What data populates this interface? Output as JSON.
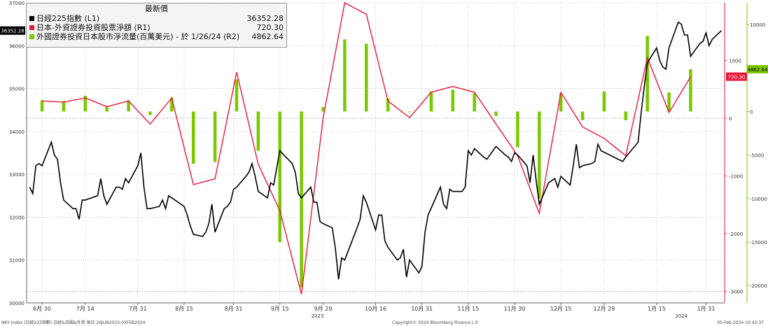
{
  "chart_data": {
    "type": "line",
    "title": "最新價",
    "colors": {
      "nikkei": "#000000",
      "net_buy": "#e8193b",
      "net_flow": "#7cc800",
      "grid": "#b8b8b8",
      "right_axis": "#e8193b"
    },
    "legend": [
      {
        "label": "日經225指數 (L1)",
        "value": "36352.28",
        "color": "#000000"
      },
      {
        "label": "日本-外資證券投資股票淨額 (R1)",
        "value": "720.30",
        "color": "#e8193b"
      },
      {
        "label": "外國證券投資日本股市淨流量(百萬美元) - 於 1/26/24 (R2)",
        "value": "4862.64",
        "color": "#7cc800"
      }
    ],
    "legend_placement": "top-left",
    "grid": true,
    "left_axis": {
      "ticks": [
        30000,
        31000,
        32000,
        33000,
        34000,
        35000,
        36000,
        37000
      ],
      "ylim": [
        30000,
        37000
      ]
    },
    "right_axis_r1": {
      "ticks": [
        1000,
        0,
        -1000,
        -2000,
        -3000
      ],
      "ylim": [
        -3200,
        2000
      ]
    },
    "right_axis_r2": {
      "ticks": [
        10000,
        5000,
        0,
        -5000,
        -10000,
        -15000,
        -20000
      ],
      "ylim": [
        -22000,
        12500
      ]
    },
    "x_ticks": [
      "6月 30",
      "7月 14",
      "7月 31",
      "8月 15",
      "8月 31",
      "9月 15",
      "9月 29",
      "10月 16",
      "10月 31",
      "11月 15",
      "11月 30",
      "12月 15",
      "12月 29",
      "1月 15",
      "1月 31"
    ],
    "year_labels": [
      "2023",
      "2024"
    ],
    "last_value_tags": [
      "36352.28",
      "720.30",
      "4862.64"
    ],
    "nikkei": [
      [
        "6/26",
        32700
      ],
      [
        "6/27",
        32550
      ],
      [
        "6/28",
        33200
      ],
      [
        "6/29",
        33250
      ],
      [
        "6/30",
        33200
      ],
      [
        "7/3",
        33750
      ],
      [
        "7/4",
        33450
      ],
      [
        "7/5",
        33350
      ],
      [
        "7/6",
        32800
      ],
      [
        "7/7",
        32400
      ],
      [
        "7/10",
        32200
      ],
      [
        "7/11",
        32200
      ],
      [
        "7/12",
        31950
      ],
      [
        "7/13",
        32400
      ],
      [
        "7/14",
        32400
      ],
      [
        "7/18",
        32500
      ],
      [
        "7/19",
        32900
      ],
      [
        "7/20",
        32500
      ],
      [
        "7/21",
        32300
      ],
      [
        "7/24",
        32700
      ],
      [
        "7/25",
        32700
      ],
      [
        "7/26",
        32650
      ],
      [
        "7/27",
        32900
      ],
      [
        "7/28",
        32800
      ],
      [
        "7/31",
        33200
      ],
      [
        "8/1",
        33500
      ],
      [
        "8/2",
        32700
      ],
      [
        "8/3",
        32200
      ],
      [
        "8/4",
        32200
      ],
      [
        "8/7",
        32250
      ],
      [
        "8/8",
        32400
      ],
      [
        "8/9",
        32200
      ],
      [
        "8/10",
        32500
      ],
      [
        "8/14",
        32300
      ],
      [
        "8/15",
        32250
      ],
      [
        "8/16",
        32050
      ],
      [
        "8/17",
        31800
      ],
      [
        "8/18",
        31600
      ],
      [
        "8/21",
        31550
      ],
      [
        "8/22",
        31650
      ],
      [
        "8/23",
        31850
      ],
      [
        "8/24",
        32300
      ],
      [
        "8/25",
        31650
      ],
      [
        "8/28",
        32200
      ],
      [
        "8/29",
        32250
      ],
      [
        "8/30",
        32350
      ],
      [
        "8/31",
        32650
      ],
      [
        "9/1",
        32700
      ],
      [
        "9/4",
        32950
      ],
      [
        "9/5",
        33050
      ],
      [
        "9/6",
        33250
      ],
      [
        "9/7",
        32950
      ],
      [
        "9/8",
        32600
      ],
      [
        "9/11",
        32450
      ],
      [
        "9/12",
        32800
      ],
      [
        "9/13",
        32750
      ],
      [
        "9/14",
        33150
      ],
      [
        "9/15",
        33550
      ],
      [
        "9/19",
        33250
      ],
      [
        "9/20",
        33050
      ],
      [
        "9/21",
        32550
      ],
      [
        "9/22",
        32450
      ],
      [
        "9/25",
        32700
      ],
      [
        "9/26",
        32350
      ],
      [
        "9/27",
        32350
      ],
      [
        "9/28",
        31900
      ],
      [
        "9/29",
        31850
      ],
      [
        "10/2",
        31750
      ],
      [
        "10/3",
        31250
      ],
      [
        "10/4",
        30550
      ],
      [
        "10/5",
        31050
      ],
      [
        "10/6",
        31000
      ],
      [
        "10/10",
        31750
      ],
      [
        "10/11",
        31950
      ],
      [
        "10/12",
        32500
      ],
      [
        "10/13",
        32350
      ],
      [
        "10/16",
        31700
      ],
      [
        "10/17",
        32050
      ],
      [
        "10/18",
        32050
      ],
      [
        "10/19",
        31450
      ],
      [
        "10/20",
        31300
      ],
      [
        "10/23",
        31000
      ],
      [
        "10/24",
        31050
      ],
      [
        "10/25",
        31250
      ],
      [
        "10/26",
        30600
      ],
      [
        "10/27",
        31000
      ],
      [
        "10/30",
        30700
      ],
      [
        "10/31",
        30850
      ],
      [
        "11/1",
        31650
      ],
      [
        "11/2",
        32050
      ],
      [
        "11/6",
        32700
      ],
      [
        "11/7",
        32300
      ],
      [
        "11/8",
        32200
      ],
      [
        "11/9",
        32650
      ],
      [
        "11/10",
        32600
      ],
      [
        "11/13",
        32600
      ],
      [
        "11/14",
        32700
      ],
      [
        "11/15",
        33550
      ],
      [
        "11/16",
        33450
      ],
      [
        "11/17",
        33600
      ],
      [
        "11/20",
        33400
      ],
      [
        "11/21",
        33350
      ],
      [
        "11/22",
        33450
      ],
      [
        "11/24",
        33650
      ],
      [
        "11/27",
        33450
      ],
      [
        "11/28",
        33400
      ],
      [
        "11/29",
        33300
      ],
      [
        "11/30",
        33500
      ],
      [
        "12/1",
        33450
      ],
      [
        "12/4",
        33200
      ],
      [
        "12/5",
        32800
      ],
      [
        "12/6",
        33450
      ],
      [
        "12/7",
        32850
      ],
      [
        "12/8",
        32300
      ],
      [
        "12/11",
        32800
      ],
      [
        "12/12",
        32850
      ],
      [
        "12/13",
        32900
      ],
      [
        "12/14",
        32700
      ],
      [
        "12/15",
        32950
      ],
      [
        "12/18",
        32750
      ],
      [
        "12/19",
        33200
      ],
      [
        "12/20",
        33700
      ],
      [
        "12/21",
        33150
      ],
      [
        "12/22",
        33200
      ],
      [
        "12/25",
        33250
      ],
      [
        "12/26",
        33300
      ],
      [
        "12/27",
        33700
      ],
      [
        "12/28",
        33550
      ],
      [
        "1/4",
        33300
      ],
      [
        "1/5",
        33400
      ],
      [
        "1/9",
        33750
      ],
      [
        "1/10",
        34450
      ],
      [
        "1/11",
        35050
      ],
      [
        "1/12",
        35600
      ],
      [
        "1/15",
        35950
      ],
      [
        "1/16",
        35650
      ],
      [
        "1/17",
        35500
      ],
      [
        "1/18",
        35450
      ],
      [
        "1/19",
        35950
      ],
      [
        "1/22",
        36550
      ],
      [
        "1/23",
        36500
      ],
      [
        "1/24",
        36250
      ],
      [
        "1/25",
        36250
      ],
      [
        "1/26",
        35750
      ],
      [
        "1/29",
        36050
      ],
      [
        "1/30",
        36100
      ],
      [
        "1/31",
        36300
      ],
      [
        "2/1",
        36000
      ],
      [
        "2/2",
        36150
      ],
      [
        "2/5",
        36352.28
      ]
    ],
    "net_buy": [
      [
        "6/30",
        300
      ],
      [
        "7/7",
        280
      ],
      [
        "7/14",
        350
      ],
      [
        "7/21",
        200
      ],
      [
        "7/28",
        300
      ],
      [
        "8/4",
        -100
      ],
      [
        "8/11",
        350
      ],
      [
        "8/18",
        -1150
      ],
      [
        "8/25",
        -1050
      ],
      [
        "9/1",
        800
      ],
      [
        "9/8",
        -800
      ],
      [
        "9/15",
        -1600
      ],
      [
        "9/22",
        -3050
      ],
      [
        "9/29",
        0
      ],
      [
        "10/6",
        2000
      ],
      [
        "10/13",
        1800
      ],
      [
        "10/20",
        300
      ],
      [
        "10/27",
        10
      ],
      [
        "11/3",
        450
      ],
      [
        "11/10",
        550
      ],
      [
        "11/17",
        450
      ],
      [
        "11/24",
        -100
      ],
      [
        "12/1",
        -650
      ],
      [
        "12/8",
        -1650
      ],
      [
        "12/15",
        450
      ],
      [
        "12/22",
        -150
      ],
      [
        "12/29",
        -350
      ],
      [
        "1/5",
        -650
      ],
      [
        "1/12",
        1050
      ],
      [
        "1/19",
        100
      ],
      [
        "1/26",
        720.3
      ]
    ],
    "net_flow": [
      [
        "6/30",
        1300
      ],
      [
        "7/7",
        1200
      ],
      [
        "7/14",
        1800
      ],
      [
        "7/21",
        600
      ],
      [
        "7/28",
        1300
      ],
      [
        "8/4",
        -400
      ],
      [
        "8/11",
        1600
      ],
      [
        "8/18",
        -6000
      ],
      [
        "8/25",
        -5800
      ],
      [
        "9/1",
        3700
      ],
      [
        "9/8",
        -4500
      ],
      [
        "9/15",
        -15000
      ],
      [
        "9/22",
        -20200
      ],
      [
        "9/29",
        500
      ],
      [
        "10/6",
        8300
      ],
      [
        "10/13",
        7800
      ],
      [
        "10/20",
        1500
      ],
      [
        "10/27",
        0
      ],
      [
        "11/3",
        2300
      ],
      [
        "11/10",
        2500
      ],
      [
        "11/17",
        2100
      ],
      [
        "11/24",
        -500
      ],
      [
        "12/1",
        -4100
      ],
      [
        "12/8",
        -10000
      ],
      [
        "12/15",
        2100
      ],
      [
        "12/22",
        -1000
      ],
      [
        "12/29",
        2300
      ],
      [
        "1/5",
        -1000
      ],
      [
        "1/12",
        8700
      ],
      [
        "1/19",
        2200
      ],
      [
        "1/26",
        4862.64
      ]
    ]
  },
  "footer": {
    "left": "NKY Index (日經225指數) 日經&日圓&外資  每日 26JUN2023-05FEB2024",
    "middle": "Copyright© 2024 Bloomberg Finance L.P.",
    "right": "05-Feb-2024 10:43:37"
  }
}
